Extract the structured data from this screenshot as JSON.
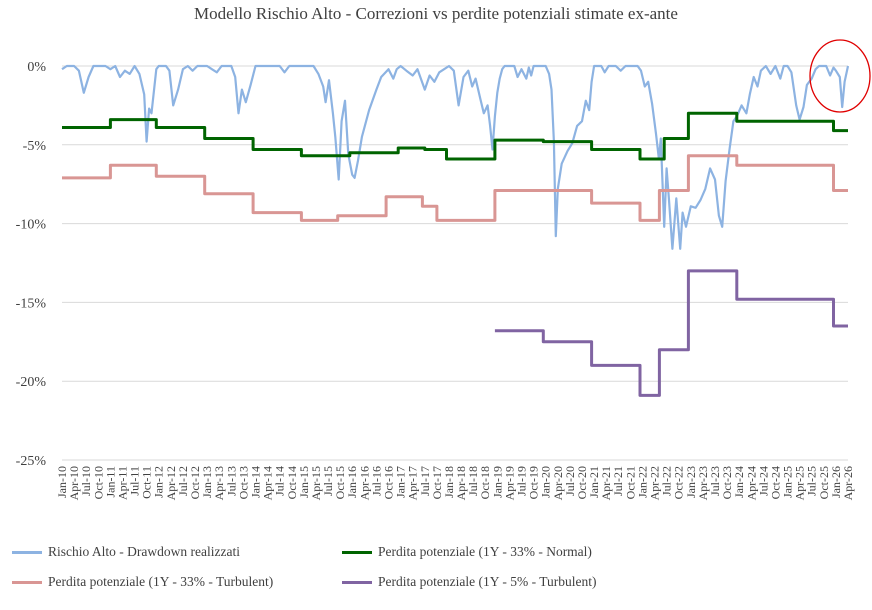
{
  "colors": {
    "s1": "#8db3e2",
    "s2": "#006400",
    "s3": "#d99694",
    "s4": "#8064a2",
    "grid": "#d9d9d9",
    "highlight": "#e00000"
  },
  "chart_data": {
    "type": "line",
    "title": "Modello Rischio Alto - Correzioni vs perdite potenziali stimate ex-ante",
    "ylim": [
      -25,
      0
    ],
    "yticks": [
      0,
      -5,
      -10,
      -15,
      -20,
      -25
    ],
    "ytick_labels": [
      "0%",
      "-5%",
      "-10%",
      "-15%",
      "-20%",
      "-25%"
    ],
    "x_range": [
      2010.0,
      2026.25
    ],
    "x_tick_labels": [
      "Jan-10",
      "Apr-10",
      "Jul-10",
      "Oct-10",
      "Jan-11",
      "Apr-11",
      "Jul-11",
      "Oct-11",
      "Jan-12",
      "Apr-12",
      "Jul-12",
      "Oct-12",
      "Jan-13",
      "Apr-13",
      "Jul-13",
      "Oct-13",
      "Jan-14",
      "Apr-14",
      "Jul-14",
      "Oct-14",
      "Jan-15",
      "Apr-15",
      "Jul-15",
      "Oct-15",
      "Jan-16",
      "Apr-16",
      "Jul-16",
      "Oct-16",
      "Jan-17",
      "Apr-17",
      "Jul-17",
      "Oct-17",
      "Jan-18",
      "Apr-18",
      "Jul-18",
      "Oct-18",
      "Jan-19",
      "Apr-19",
      "Jul-19",
      "Oct-19",
      "Jan-20",
      "Apr-20",
      "Jul-20",
      "Oct-20",
      "Jan-21",
      "Apr-21",
      "Jul-21",
      "Oct-21",
      "Jan-22",
      "Apr-22",
      "Jul-22",
      "Oct-22",
      "Jan-23",
      "Apr-23",
      "Jul-23",
      "Oct-23",
      "Jan-24",
      "Apr-24",
      "Jul-24",
      "Oct-24",
      "Jan-25",
      "Apr-25",
      "Jul-25",
      "Oct-25",
      "Jan-26",
      "Apr-26"
    ],
    "grid": "horizontal",
    "legend_position": "bottom",
    "annotation": "red ellipse highlighting the last months (Oct-25 to Apr-26)",
    "series": [
      {
        "name": "Rischio Alto - Drawdown realizzati",
        "style": "line",
        "points": [
          [
            2010.0,
            -0.2
          ],
          [
            2010.1,
            0
          ],
          [
            2010.25,
            0
          ],
          [
            2010.35,
            -0.3
          ],
          [
            2010.45,
            -1.7
          ],
          [
            2010.55,
            -0.7
          ],
          [
            2010.65,
            0
          ],
          [
            2010.9,
            0
          ],
          [
            2011.0,
            -0.2
          ],
          [
            2011.1,
            0
          ],
          [
            2011.2,
            -0.7
          ],
          [
            2011.3,
            -0.3
          ],
          [
            2011.4,
            -0.5
          ],
          [
            2011.5,
            0
          ],
          [
            2011.6,
            -0.5
          ],
          [
            2011.7,
            -1.8
          ],
          [
            2011.75,
            -4.8
          ],
          [
            2011.8,
            -2.7
          ],
          [
            2011.85,
            -3.0
          ],
          [
            2011.95,
            -0.2
          ],
          [
            2012.0,
            0
          ],
          [
            2012.15,
            0
          ],
          [
            2012.22,
            -0.3
          ],
          [
            2012.3,
            -2.5
          ],
          [
            2012.4,
            -1.5
          ],
          [
            2012.5,
            -0.2
          ],
          [
            2012.6,
            0
          ],
          [
            2012.7,
            -0.3
          ],
          [
            2012.8,
            0
          ],
          [
            2013.0,
            0
          ],
          [
            2013.1,
            -0.2
          ],
          [
            2013.2,
            -0.4
          ],
          [
            2013.3,
            0
          ],
          [
            2013.5,
            0
          ],
          [
            2013.58,
            -0.7
          ],
          [
            2013.65,
            -3.0
          ],
          [
            2013.72,
            -1.5
          ],
          [
            2013.8,
            -2.3
          ],
          [
            2013.9,
            -1.2
          ],
          [
            2014.0,
            0
          ],
          [
            2014.5,
            0
          ],
          [
            2014.6,
            -0.4
          ],
          [
            2014.7,
            0
          ],
          [
            2015.0,
            0
          ],
          [
            2015.2,
            0
          ],
          [
            2015.3,
            -0.5
          ],
          [
            2015.4,
            -1.3
          ],
          [
            2015.45,
            -2.3
          ],
          [
            2015.52,
            -0.9
          ],
          [
            2015.6,
            -3.0
          ],
          [
            2015.65,
            -4.5
          ],
          [
            2015.72,
            -7.2
          ],
          [
            2015.78,
            -3.5
          ],
          [
            2015.85,
            -2.2
          ],
          [
            2015.92,
            -5.6
          ],
          [
            2016.0,
            -6.9
          ],
          [
            2016.05,
            -7.1
          ],
          [
            2016.12,
            -6.0
          ],
          [
            2016.2,
            -4.5
          ],
          [
            2016.35,
            -2.8
          ],
          [
            2016.5,
            -1.5
          ],
          [
            2016.6,
            -0.7
          ],
          [
            2016.75,
            -0.2
          ],
          [
            2016.85,
            -0.8
          ],
          [
            2016.92,
            -0.2
          ],
          [
            2017.0,
            0
          ],
          [
            2017.12,
            -0.3
          ],
          [
            2017.25,
            -0.6
          ],
          [
            2017.35,
            -0.2
          ],
          [
            2017.5,
            -1.5
          ],
          [
            2017.6,
            -0.6
          ],
          [
            2017.7,
            -1.0
          ],
          [
            2017.8,
            -0.4
          ],
          [
            2017.9,
            -0.2
          ],
          [
            2018.0,
            0
          ],
          [
            2018.1,
            -0.3
          ],
          [
            2018.2,
            -2.5
          ],
          [
            2018.3,
            -0.7
          ],
          [
            2018.4,
            -0.3
          ],
          [
            2018.48,
            -1.3
          ],
          [
            2018.55,
            -0.8
          ],
          [
            2018.65,
            -2.1
          ],
          [
            2018.72,
            -3.0
          ],
          [
            2018.8,
            -2.5
          ],
          [
            2018.85,
            -3.8
          ],
          [
            2018.9,
            -5.3
          ],
          [
            2018.95,
            -3.2
          ],
          [
            2019.0,
            -1.7
          ],
          [
            2019.05,
            -0.8
          ],
          [
            2019.1,
            -0.2
          ],
          [
            2019.15,
            0
          ],
          [
            2019.35,
            0
          ],
          [
            2019.42,
            -0.7
          ],
          [
            2019.5,
            -0.2
          ],
          [
            2019.6,
            -0.8
          ],
          [
            2019.65,
            -0.1
          ],
          [
            2019.7,
            -0.6
          ],
          [
            2019.75,
            0
          ],
          [
            2020.0,
            0
          ],
          [
            2020.07,
            -0.5
          ],
          [
            2020.12,
            -1.5
          ],
          [
            2020.17,
            -4.8
          ],
          [
            2020.21,
            -10.8
          ],
          [
            2020.25,
            -7.8
          ],
          [
            2020.33,
            -6.2
          ],
          [
            2020.45,
            -5.4
          ],
          [
            2020.55,
            -4.9
          ],
          [
            2020.65,
            -3.8
          ],
          [
            2020.75,
            -3.5
          ],
          [
            2020.83,
            -2.2
          ],
          [
            2020.9,
            -2.8
          ],
          [
            2020.95,
            -1.0
          ],
          [
            2021.0,
            0
          ],
          [
            2021.15,
            0
          ],
          [
            2021.22,
            -0.4
          ],
          [
            2021.3,
            0
          ],
          [
            2021.45,
            0
          ],
          [
            2021.55,
            -0.3
          ],
          [
            2021.65,
            0
          ],
          [
            2021.9,
            0
          ],
          [
            2021.97,
            -0.3
          ],
          [
            2022.05,
            -1.3
          ],
          [
            2022.12,
            -1.0
          ],
          [
            2022.2,
            -2.4
          ],
          [
            2022.28,
            -4.3
          ],
          [
            2022.34,
            -5.9
          ],
          [
            2022.38,
            -4.6
          ],
          [
            2022.45,
            -10.2
          ],
          [
            2022.5,
            -6.5
          ],
          [
            2022.55,
            -8.5
          ],
          [
            2022.62,
            -11.6
          ],
          [
            2022.7,
            -8.4
          ],
          [
            2022.78,
            -11.6
          ],
          [
            2022.83,
            -9.3
          ],
          [
            2022.9,
            -10.2
          ],
          [
            2023.0,
            -8.9
          ],
          [
            2023.1,
            -9.0
          ],
          [
            2023.2,
            -8.5
          ],
          [
            2023.3,
            -7.8
          ],
          [
            2023.4,
            -6.5
          ],
          [
            2023.5,
            -7.2
          ],
          [
            2023.58,
            -9.5
          ],
          [
            2023.65,
            -10.2
          ],
          [
            2023.72,
            -7.3
          ],
          [
            2023.8,
            -5.3
          ],
          [
            2023.88,
            -3.5
          ],
          [
            2023.95,
            -3.2
          ],
          [
            2024.05,
            -2.5
          ],
          [
            2024.15,
            -3.0
          ],
          [
            2024.22,
            -1.8
          ],
          [
            2024.3,
            -0.7
          ],
          [
            2024.38,
            -1.3
          ],
          [
            2024.45,
            -0.3
          ],
          [
            2024.55,
            0
          ],
          [
            2024.65,
            -0.5
          ],
          [
            2024.75,
            0
          ],
          [
            2024.85,
            -0.8
          ],
          [
            2024.92,
            0
          ],
          [
            2025.0,
            0
          ],
          [
            2025.08,
            -0.4
          ],
          [
            2025.18,
            -2.5
          ],
          [
            2025.25,
            -3.4
          ],
          [
            2025.33,
            -2.6
          ],
          [
            2025.4,
            -1.2
          ],
          [
            2025.5,
            -0.8
          ],
          [
            2025.58,
            -0.2
          ],
          [
            2025.65,
            0
          ],
          [
            2025.8,
            0
          ],
          [
            2025.88,
            -0.6
          ],
          [
            2025.95,
            -0.1
          ],
          [
            2026.0,
            -0.3
          ],
          [
            2026.08,
            -0.7
          ],
          [
            2026.13,
            -2.6
          ],
          [
            2026.18,
            -1.0
          ],
          [
            2026.25,
            0
          ]
        ]
      },
      {
        "name": "Perdita potenziale (1Y - 33% - Normal)",
        "style": "step",
        "points": [
          [
            2010.0,
            -3.9
          ],
          [
            2011.0,
            -3.4
          ],
          [
            2011.95,
            -3.9
          ],
          [
            2012.95,
            -4.6
          ],
          [
            2013.95,
            -5.3
          ],
          [
            2014.95,
            -5.7
          ],
          [
            2015.95,
            -5.5
          ],
          [
            2016.95,
            -5.2
          ],
          [
            2017.5,
            -5.3
          ],
          [
            2017.95,
            -5.9
          ],
          [
            2018.95,
            -4.7
          ],
          [
            2019.95,
            -4.8
          ],
          [
            2020.95,
            -5.3
          ],
          [
            2021.95,
            -5.9
          ],
          [
            2022.45,
            -4.6
          ],
          [
            2022.95,
            -3.0
          ],
          [
            2023.95,
            -3.5
          ],
          [
            2025.95,
            -4.1
          ],
          [
            2026.25,
            -4.1
          ]
        ]
      },
      {
        "name": "Perdita potenziale (1Y - 33% - Turbulent)",
        "style": "step",
        "points": [
          [
            2010.0,
            -7.1
          ],
          [
            2011.0,
            -6.3
          ],
          [
            2011.95,
            -7.0
          ],
          [
            2012.95,
            -8.1
          ],
          [
            2013.95,
            -9.3
          ],
          [
            2014.95,
            -9.8
          ],
          [
            2015.7,
            -9.5
          ],
          [
            2016.7,
            -8.3
          ],
          [
            2017.45,
            -8.9
          ],
          [
            2017.75,
            -9.8
          ],
          [
            2018.95,
            -7.9
          ],
          [
            2020.95,
            -8.7
          ],
          [
            2021.95,
            -9.8
          ],
          [
            2022.35,
            -7.9
          ],
          [
            2022.95,
            -5.7
          ],
          [
            2023.95,
            -6.3
          ],
          [
            2025.95,
            -7.9
          ],
          [
            2026.25,
            -7.9
          ]
        ]
      },
      {
        "name": "Perdita potenziale (1Y - 5% - Turbulent)",
        "style": "step",
        "points": [
          [
            2018.95,
            -16.8
          ],
          [
            2019.95,
            -17.5
          ],
          [
            2020.95,
            -19.0
          ],
          [
            2021.95,
            -20.9
          ],
          [
            2022.35,
            -18.0
          ],
          [
            2022.95,
            -13.0
          ],
          [
            2023.95,
            -14.8
          ],
          [
            2025.95,
            -16.5
          ],
          [
            2026.25,
            -16.5
          ]
        ]
      }
    ]
  }
}
